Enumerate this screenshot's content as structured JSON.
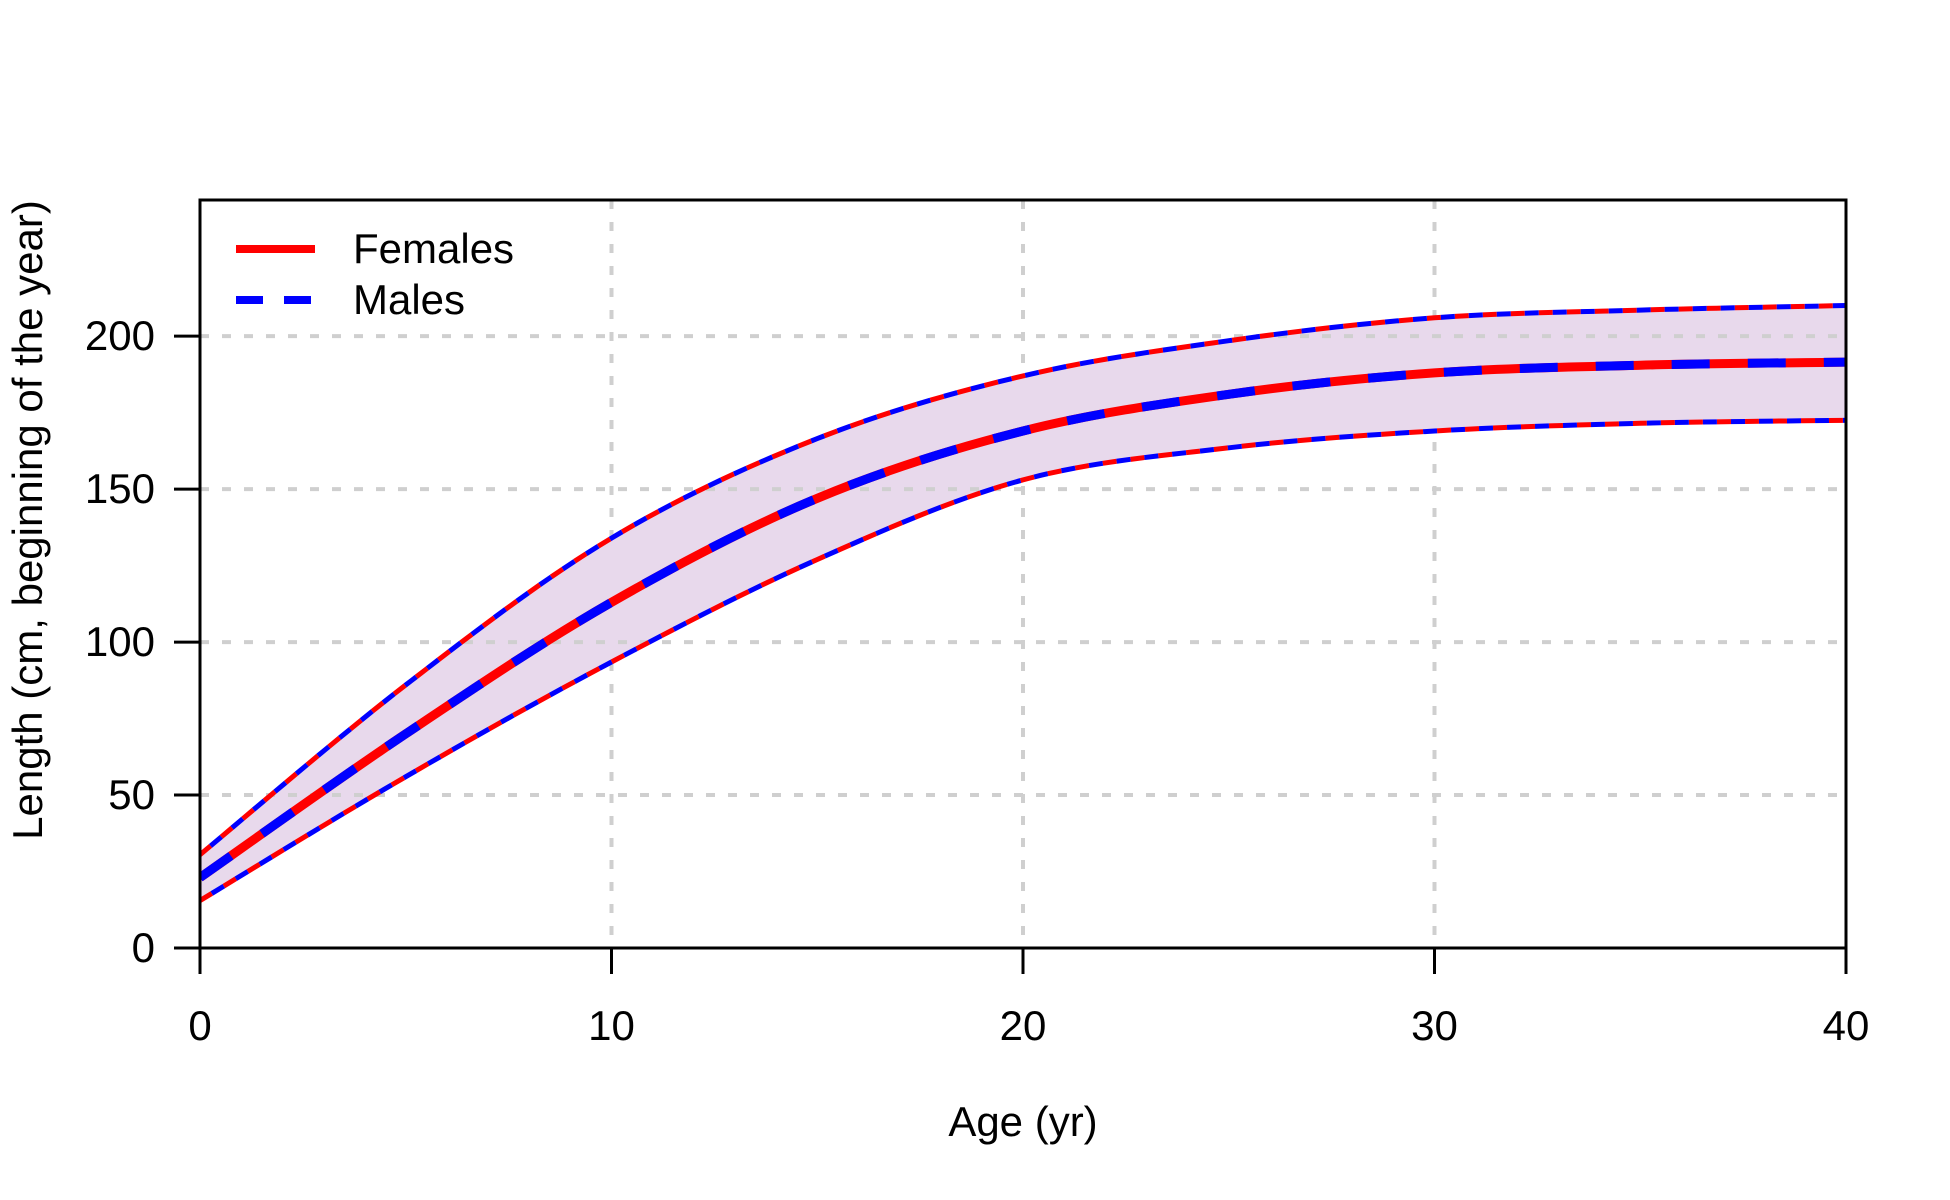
{
  "chart_data": {
    "type": "line",
    "title": "",
    "xlabel": "Age (yr)",
    "ylabel": "Length (cm, beginning of the year)",
    "xlim": [
      0,
      40
    ],
    "ylim": [
      0,
      244.5
    ],
    "xticks": [
      0,
      10,
      20,
      30,
      40
    ],
    "xtick_labels": [
      "0",
      "10",
      "20",
      "30",
      "40"
    ],
    "yticks": [
      0,
      50,
      100,
      150,
      200
    ],
    "ytick_labels": [
      "0",
      "50",
      "100",
      "150",
      "200"
    ],
    "grid": {
      "style": "dotted",
      "color": "#CFCFCF",
      "shown": true
    },
    "legend": {
      "position": "top-left",
      "entries": [
        {
          "label": "Females",
          "color": "#FF0000",
          "style": "solid"
        },
        {
          "label": "Males",
          "color": "#0000FF",
          "style": "dashed"
        }
      ]
    },
    "x": [
      0,
      5,
      10,
      15,
      20,
      25,
      30,
      35,
      40
    ],
    "series": [
      {
        "name": "Females",
        "color": "#FF0000",
        "style": "solid",
        "values": [
          23,
          70,
          113,
          147,
          169,
          181,
          188,
          190.5,
          191.5
        ]
      },
      {
        "name": "Males",
        "color": "#0000FF",
        "style": "dashed",
        "values": [
          23,
          70,
          113,
          147,
          169,
          181,
          188,
          190.5,
          191.5
        ]
      }
    ],
    "band": {
      "description": "confidence interval band around growth curves",
      "fill": "#E8D9EC",
      "edge_colors": [
        "#FF0000",
        "#0000FF"
      ],
      "lower": [
        15.5,
        56,
        93.5,
        127,
        153,
        163.5,
        169,
        171.5,
        172.5
      ],
      "upper": [
        30.5,
        86,
        134,
        166.5,
        187,
        198.5,
        206,
        208.5,
        210
      ]
    },
    "colors": {
      "axis": "#000000",
      "background": "#FFFFFF"
    }
  }
}
